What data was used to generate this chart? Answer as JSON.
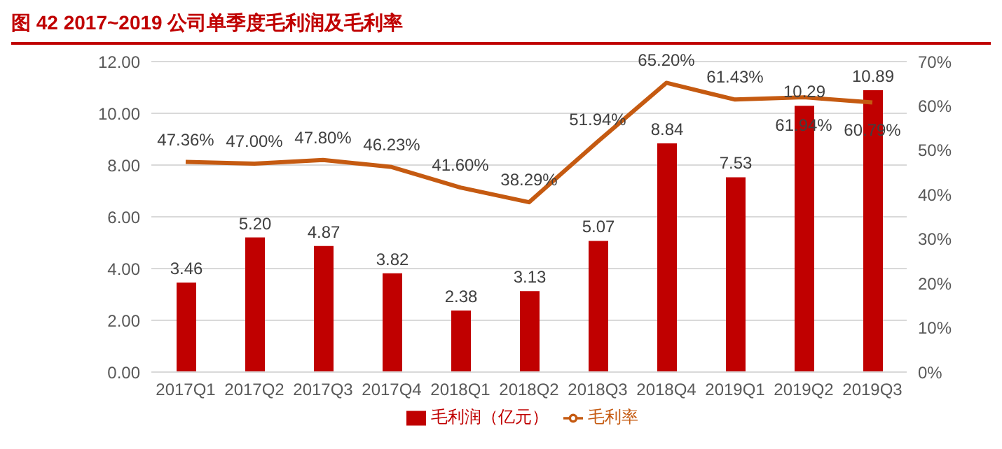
{
  "chart_data": {
    "type": "bar",
    "title": "图 42   2017~2019 公司单季度毛利润及毛利率",
    "categories": [
      "2017Q1",
      "2017Q2",
      "2017Q3",
      "2017Q4",
      "2018Q1",
      "2018Q2",
      "2018Q3",
      "2018Q4",
      "2019Q1",
      "2019Q2",
      "2019Q3"
    ],
    "series": [
      {
        "name": "毛利润（亿元）",
        "color": "#c00000",
        "values": [
          3.46,
          5.2,
          4.87,
          3.82,
          2.38,
          3.13,
          5.07,
          8.84,
          7.53,
          10.29,
          10.89
        ],
        "value_labels": [
          "3.46",
          "5.20",
          "4.87",
          "3.82",
          "2.38",
          "3.13",
          "5.07",
          "8.84",
          "7.53",
          "10.29",
          "10.89"
        ]
      },
      {
        "name": "毛利率",
        "type": "line",
        "axis": "y2",
        "color": "#c55a11",
        "values": [
          47.36,
          47.0,
          47.8,
          46.23,
          41.6,
          38.29,
          51.94,
          65.2,
          61.43,
          61.94,
          60.79
        ],
        "value_labels": [
          "47.36%",
          "47.00%",
          "47.80%",
          "46.23%",
          "41.60%",
          "38.29%",
          "51.94%",
          "65.20%",
          "61.43%",
          "61.94%",
          "60.79%"
        ]
      }
    ],
    "ylim": [
      0,
      12
    ],
    "yticks": [
      "0.00",
      "2.00",
      "4.00",
      "6.00",
      "8.00",
      "10.00",
      "12.00"
    ],
    "y2lim": [
      0,
      70
    ],
    "y2ticks": [
      {
        "value": 0,
        "label": "0%"
      },
      {
        "value": 10,
        "label": "10%"
      },
      {
        "value": 20,
        "label": "20%"
      },
      {
        "value": 30,
        "label": "30%"
      },
      {
        "value": 40,
        "label": "40%"
      },
      {
        "value": 50,
        "label": "50%"
      },
      {
        "value": 60,
        "label": "60%"
      },
      {
        "value": 70,
        "label": "70%"
      }
    ],
    "grid": "y",
    "legend": "bottom",
    "marker": "none",
    "line_style": "solid"
  }
}
